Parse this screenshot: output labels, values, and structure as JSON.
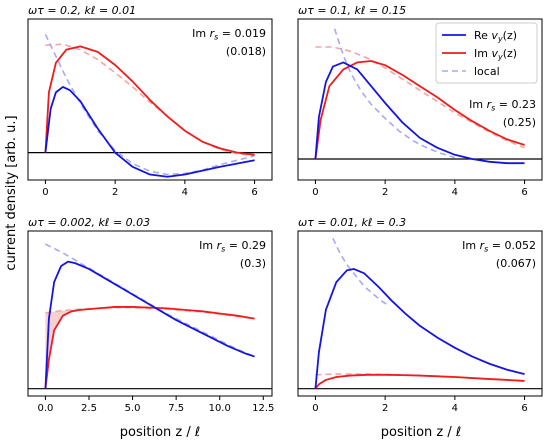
{
  "figure": {
    "ylabel": "current density [arb. u.]",
    "xlabel": "position z / ℓ",
    "colors": {
      "re": "#1414e0",
      "im": "#ee1c1c",
      "local_re": "#a8a8f4",
      "local_im": "#f4a6a6",
      "shade": "#f5c4c4"
    }
  },
  "legend": {
    "entries": [
      {
        "key": "re",
        "label": "Re v_y(z)"
      },
      {
        "key": "im",
        "label": "Im v_y(z)"
      },
      {
        "key": "local",
        "label": "local"
      }
    ]
  },
  "chart_data": [
    {
      "type": "line",
      "title": "ωτ = 0.2,  kℓ = 0.01",
      "annotation_value": "Im r_s = 0.019",
      "annotation_paren": "(0.018)",
      "xlim": [
        -0.5,
        6.5
      ],
      "ylim": [
        -0.25,
        1.22
      ],
      "xticks": [
        0,
        2,
        4,
        6
      ],
      "xticklabels": [
        "0",
        "2",
        "4",
        "6"
      ],
      "series": [
        {
          "key": "re",
          "x": [
            0,
            0.15,
            0.3,
            0.5,
            0.7,
            1.0,
            1.5,
            2.0,
            2.5,
            3.0,
            3.5,
            4.0,
            5.0,
            6.0
          ],
          "y": [
            0.0,
            0.4,
            0.55,
            0.6,
            0.57,
            0.47,
            0.22,
            0.0,
            -0.13,
            -0.2,
            -0.22,
            -0.2,
            -0.13,
            -0.07
          ]
        },
        {
          "key": "im",
          "x": [
            0,
            0.1,
            0.3,
            0.6,
            1.0,
            1.5,
            2.0,
            2.5,
            3.0,
            3.5,
            4.0,
            4.5,
            5.0,
            5.5,
            6.0
          ],
          "y": [
            0.0,
            0.55,
            0.82,
            0.94,
            0.97,
            0.92,
            0.8,
            0.65,
            0.48,
            0.33,
            0.2,
            0.1,
            0.04,
            0.0,
            -0.02
          ]
        },
        {
          "key": "local_re",
          "x": [
            0,
            0.3,
            0.6,
            1.0,
            1.5,
            2.0,
            2.5,
            3.0,
            3.5,
            4.0,
            4.5,
            5.0,
            5.5,
            6.0
          ],
          "y": [
            1.08,
            0.88,
            0.68,
            0.45,
            0.2,
            0.02,
            -0.1,
            -0.17,
            -0.2,
            -0.19,
            -0.16,
            -0.11,
            -0.07,
            -0.03
          ]
        },
        {
          "key": "local_im",
          "x": [
            0,
            0.5,
            1.0,
            1.5,
            2.0,
            2.5,
            3.0,
            3.5,
            4.0,
            4.5,
            5.0,
            5.5,
            6.0
          ],
          "y": [
            0.98,
            0.99,
            0.94,
            0.85,
            0.73,
            0.6,
            0.46,
            0.33,
            0.2,
            0.1,
            0.03,
            -0.01,
            -0.03
          ]
        }
      ]
    },
    {
      "type": "line",
      "title": "ωτ = 0.1,  kℓ = 0.15",
      "annotation_value": "Im r_s = 0.23",
      "annotation_paren": "(0.25)",
      "xlim": [
        -0.5,
        6.5
      ],
      "ylim": [
        -0.15,
        1.0
      ],
      "xticks": [
        0,
        2,
        4,
        6
      ],
      "xticklabels": [
        "0",
        "2",
        "4",
        "6"
      ],
      "series": [
        {
          "key": "re",
          "x": [
            0,
            0.1,
            0.3,
            0.5,
            0.8,
            1.2,
            1.6,
            2.0,
            2.5,
            3.0,
            3.5,
            4.0,
            4.5,
            5.0,
            5.5,
            6.0
          ],
          "y": [
            0.0,
            0.3,
            0.55,
            0.66,
            0.69,
            0.64,
            0.52,
            0.4,
            0.26,
            0.15,
            0.08,
            0.03,
            0.0,
            -0.02,
            -0.03,
            -0.03
          ]
        },
        {
          "key": "im",
          "x": [
            0,
            0.15,
            0.4,
            0.8,
            1.2,
            1.6,
            2.0,
            2.5,
            3.0,
            3.5,
            4.0,
            4.5,
            5.0,
            5.5,
            6.0
          ],
          "y": [
            0.0,
            0.28,
            0.52,
            0.64,
            0.69,
            0.7,
            0.67,
            0.6,
            0.52,
            0.44,
            0.35,
            0.27,
            0.2,
            0.14,
            0.1
          ]
        },
        {
          "key": "local_re",
          "x": [
            0.55,
            0.8,
            1.0,
            1.3,
            1.6,
            2.0,
            2.4,
            2.8,
            3.2,
            3.6,
            4.0
          ],
          "y": [
            0.93,
            0.74,
            0.62,
            0.49,
            0.39,
            0.29,
            0.2,
            0.13,
            0.08,
            0.04,
            0.01
          ]
        },
        {
          "key": "local_im",
          "x": [
            0,
            0.5,
            1.0,
            1.5,
            2.0,
            2.5,
            3.0,
            3.5,
            4.0,
            4.5,
            5.0,
            5.5,
            6.0
          ],
          "y": [
            0.8,
            0.8,
            0.77,
            0.72,
            0.65,
            0.57,
            0.49,
            0.41,
            0.33,
            0.26,
            0.19,
            0.13,
            0.08
          ]
        }
      ]
    },
    {
      "type": "line",
      "title": "ωτ = 0.002,  kℓ = 0.03",
      "annotation_value": "Im r_s = 0.29",
      "annotation_paren": "(0.3)",
      "xlim": [
        -1.0,
        13.0
      ],
      "ylim": [
        -0.05,
        1.08
      ],
      "xticks": [
        0,
        2.5,
        5,
        7.5,
        10,
        12.5
      ],
      "xticklabels": [
        "0.0",
        "2.5",
        "5.0",
        "7.5",
        "10.0",
        "12.5"
      ],
      "series": [
        {
          "key": "re",
          "x": [
            0,
            0.2,
            0.5,
            0.9,
            1.3,
            1.7,
            2.5,
            3.5,
            4.5,
            5.5,
            6.5,
            7.5,
            8.5,
            9.5,
            10.5,
            11.5,
            12.0
          ],
          "y": [
            0.0,
            0.48,
            0.73,
            0.84,
            0.87,
            0.86,
            0.82,
            0.75,
            0.68,
            0.61,
            0.54,
            0.47,
            0.41,
            0.35,
            0.29,
            0.24,
            0.22
          ]
        },
        {
          "key": "im",
          "x": [
            0,
            0.2,
            0.5,
            1.0,
            1.5,
            2.0,
            3.0,
            4.0,
            5.0,
            6.0,
            7.0,
            8.0,
            9.0,
            10.0,
            11.0,
            12.0
          ],
          "y": [
            0.0,
            0.2,
            0.4,
            0.5,
            0.53,
            0.54,
            0.55,
            0.56,
            0.56,
            0.555,
            0.55,
            0.54,
            0.53,
            0.515,
            0.5,
            0.48
          ]
        },
        {
          "key": "local_re",
          "x": [
            0,
            1.0,
            2.0,
            3.0,
            4.0,
            5.0,
            6.0,
            7.0,
            8.0,
            9.0,
            10.0,
            11.0,
            12.0
          ],
          "y": [
            0.99,
            0.93,
            0.86,
            0.79,
            0.72,
            0.65,
            0.58,
            0.51,
            0.45,
            0.39,
            0.33,
            0.27,
            0.22
          ]
        },
        {
          "key": "local_im",
          "x": [
            0,
            1.0,
            2.0,
            3.0,
            4.0,
            5.0,
            6.0,
            7.0,
            8.0,
            9.0,
            10.0,
            11.0,
            12.0
          ],
          "y": [
            0.52,
            0.535,
            0.545,
            0.55,
            0.555,
            0.555,
            0.55,
            0.545,
            0.535,
            0.525,
            0.51,
            0.495,
            0.48
          ]
        }
      ]
    },
    {
      "type": "line",
      "title": "ωτ = 0.01,  kℓ = 0.3",
      "annotation_value": "Im r_s = 0.052",
      "annotation_paren": "(0.067)",
      "xlim": [
        -0.5,
        6.5
      ],
      "ylim": [
        -0.05,
        1.08
      ],
      "xticks": [
        0,
        2,
        4,
        6
      ],
      "xticklabels": [
        "0",
        "2",
        "4",
        "6"
      ],
      "series": [
        {
          "key": "re",
          "x": [
            0,
            0.1,
            0.3,
            0.6,
            0.9,
            1.1,
            1.4,
            1.8,
            2.2,
            2.6,
            3.0,
            3.5,
            4.0,
            4.5,
            5.0,
            5.5,
            6.0
          ],
          "y": [
            0.0,
            0.25,
            0.54,
            0.73,
            0.81,
            0.82,
            0.79,
            0.7,
            0.6,
            0.51,
            0.43,
            0.35,
            0.28,
            0.22,
            0.17,
            0.13,
            0.1
          ]
        },
        {
          "key": "im",
          "x": [
            0,
            0.1,
            0.3,
            0.6,
            1.0,
            1.5,
            2.0,
            2.5,
            3.0,
            3.5,
            4.0,
            4.5,
            5.0,
            5.5,
            6.0
          ],
          "y": [
            0.0,
            0.03,
            0.06,
            0.08,
            0.09,
            0.095,
            0.095,
            0.093,
            0.09,
            0.085,
            0.08,
            0.073,
            0.066,
            0.06,
            0.053
          ]
        },
        {
          "key": "local_re",
          "x": [
            0.5,
            0.7,
            0.9,
            1.1,
            1.3,
            1.5,
            1.7,
            1.9,
            2.1
          ],
          "y": [
            1.03,
            0.93,
            0.85,
            0.79,
            0.73,
            0.68,
            0.64,
            0.6,
            0.57
          ]
        },
        {
          "key": "local_im",
          "x": [
            0,
            0.5,
            1.0,
            1.5,
            2.0,
            2.5,
            3.0,
            3.5,
            4.0,
            4.5,
            5.0,
            5.5,
            6.0
          ],
          "y": [
            0.095,
            0.1,
            0.1,
            0.1,
            0.098,
            0.095,
            0.09,
            0.086,
            0.08,
            0.074,
            0.067,
            0.061,
            0.055
          ]
        }
      ]
    }
  ]
}
